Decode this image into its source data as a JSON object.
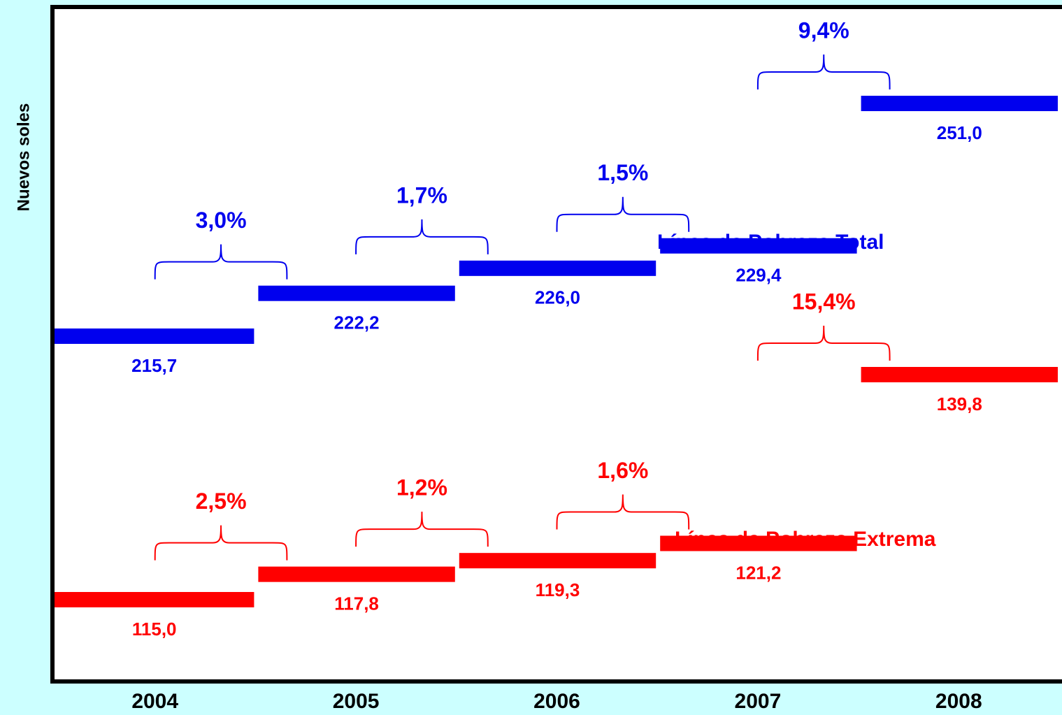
{
  "chart_data": {
    "type": "step-bar",
    "y_label": "Nuevos soles",
    "categories": [
      "2004",
      "2005",
      "2006",
      "2007",
      "2008"
    ],
    "series": [
      {
        "name": "Línea de Pobreza Total",
        "color": "#0000ee",
        "values": [
          215.7,
          222.2,
          226.0,
          229.4,
          251.0
        ],
        "value_labels": [
          "215,7",
          "222,2",
          "226,0",
          "229,4",
          "251,0"
        ],
        "growth": [
          3.0,
          1.7,
          1.5,
          9.4
        ],
        "growth_labels": [
          "3,0%",
          "1,7%",
          "1,5%",
          "9,4%"
        ]
      },
      {
        "name": "Línea de Pobreza Extrema",
        "color": "#ff0000",
        "values": [
          115.0,
          117.8,
          119.3,
          121.2,
          139.8
        ],
        "value_labels": [
          "115,0",
          "117,8",
          "119,3",
          "121,2",
          "139,8"
        ],
        "growth": [
          2.5,
          1.2,
          1.6,
          15.4
        ],
        "growth_labels": [
          "2,5%",
          "1,2%",
          "1,6%",
          "15,4%"
        ]
      }
    ]
  }
}
